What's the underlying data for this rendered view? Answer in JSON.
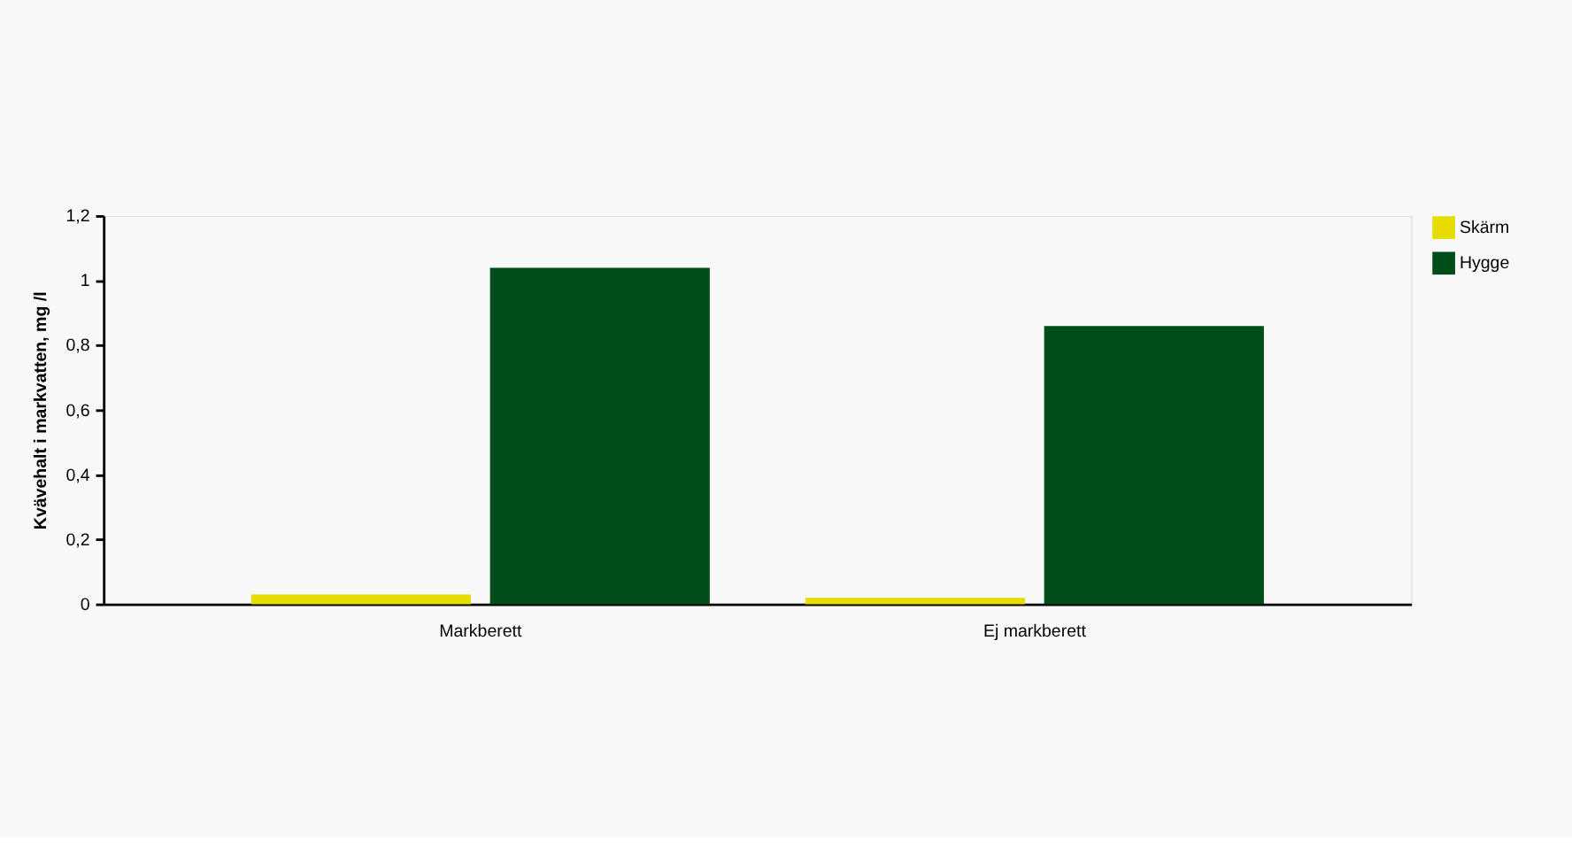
{
  "chart_data": {
    "type": "bar",
    "ylabel": "Kvävehalt i markvatten, mg /l",
    "categories": [
      "Markberett",
      "Ej markberett"
    ],
    "series": [
      {
        "name": "Skärm",
        "color": "#e6dc00",
        "values": [
          0.03,
          0.02
        ]
      },
      {
        "name": "Hygge",
        "color": "#004d19",
        "values": [
          1.04,
          0.86
        ]
      }
    ],
    "ylim": [
      0,
      1.2
    ],
    "yticks": [
      0,
      {
        "value": 0.2,
        "label": "0,2"
      },
      {
        "value": 0.4,
        "label": "0,4"
      },
      {
        "value": 0.6,
        "label": "0,6"
      },
      {
        "value": 0.8,
        "label": "0,8"
      },
      1,
      {
        "value": 1.2,
        "label": "1,2"
      }
    ],
    "grid": false,
    "legend": "right"
  }
}
